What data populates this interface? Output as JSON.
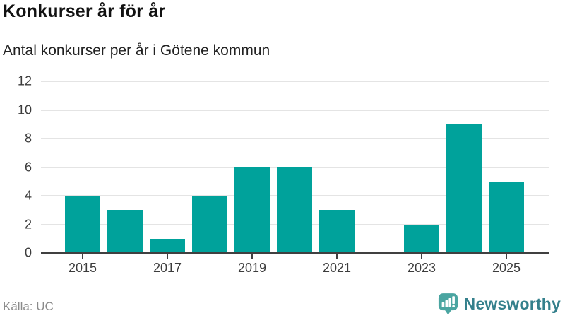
{
  "header": {
    "title": "Konkurser år för år",
    "subtitle": "Antal konkurser per år i Götene kommun"
  },
  "chart_data": {
    "type": "bar",
    "title": "Konkurser år för år",
    "subtitle": "Antal konkurser per år i Götene kommun",
    "categories": [
      2015,
      2016,
      2017,
      2018,
      2019,
      2020,
      2021,
      2022,
      2023,
      2024,
      2025
    ],
    "values": [
      4,
      3,
      1,
      4,
      6,
      6,
      3,
      0,
      2,
      9,
      5
    ],
    "xlabel": "",
    "ylabel": "",
    "ylim": [
      0,
      12
    ],
    "yticks": [
      0,
      2,
      4,
      6,
      8,
      10,
      12
    ],
    "xticks": [
      2015,
      2017,
      2019,
      2021,
      2023,
      2025
    ],
    "grid": true,
    "legend": "none",
    "bar_color": "#00a29b"
  },
  "footer": {
    "source": "Källa: UC",
    "brand": "Newsworthy"
  },
  "colors": {
    "bar": "#00a29b",
    "grid": "#e4e4e4",
    "axis": "#404040",
    "logo_bubble": "#4aa5a1",
    "wordmark": "#34808c"
  }
}
